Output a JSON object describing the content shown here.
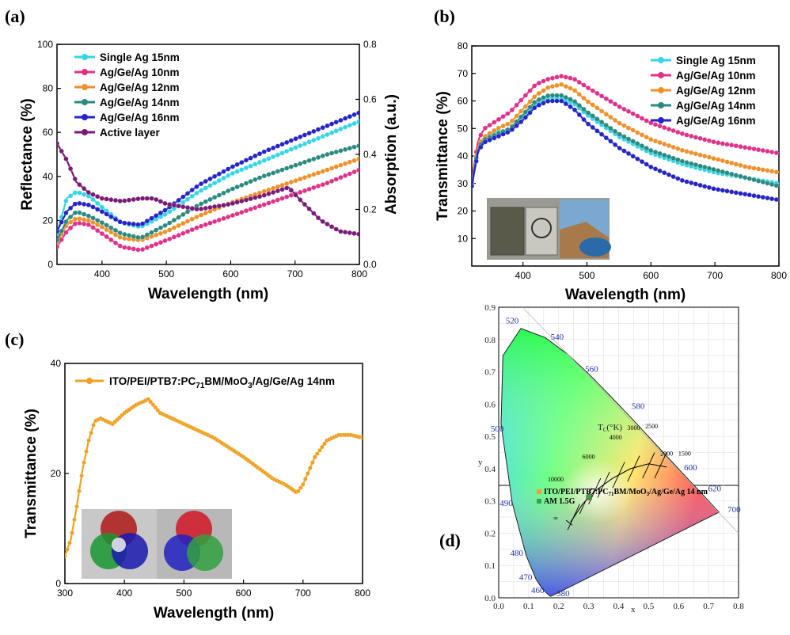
{
  "colors": {
    "single_ag": "#33d6e6",
    "agge_10": "#e0308a",
    "agge_12": "#f0902a",
    "agge_14": "#2a8a80",
    "agge_16": "#2424c8",
    "active": "#7a1a78",
    "tandem_c": "#f0a020"
  },
  "chart_data": [
    {
      "panel": "(a)",
      "type": "line",
      "xlabel": "Wavelength (nm)",
      "ylabel": "Reflectance (%)",
      "y2label": "Absorption (a.u.)",
      "xlim": [
        330,
        800
      ],
      "ylim": [
        0,
        100
      ],
      "y2lim": [
        0,
        0.8
      ],
      "xticks": [
        "400",
        "500",
        "600",
        "700",
        "800"
      ],
      "yticks": [
        "0",
        "20",
        "40",
        "60",
        "80",
        "100"
      ],
      "y2ticks": [
        "0.0",
        "0.2",
        "0.4",
        "0.6",
        "0.8"
      ],
      "legend_position": "top-left",
      "series": [
        {
          "name": "Single Ag 15nm",
          "color_key": "single_ag",
          "axis": "left",
          "x": [
            330,
            345,
            360,
            380,
            400,
            430,
            460,
            500,
            550,
            600,
            650,
            700,
            750,
            800
          ],
          "y": [
            14,
            30,
            33,
            31,
            26,
            19,
            17,
            23,
            33,
            41,
            47,
            53,
            59,
            65
          ]
        },
        {
          "name": "Ag/Ge/Ag 10nm",
          "color_key": "agge_10",
          "axis": "left",
          "x": [
            330,
            345,
            360,
            380,
            400,
            430,
            460,
            500,
            550,
            600,
            650,
            700,
            750,
            800
          ],
          "y": [
            8,
            15,
            19,
            18,
            14,
            8,
            6.5,
            11,
            17,
            22,
            27,
            32,
            37,
            43
          ]
        },
        {
          "name": "Ag/Ge/Ag 12nm",
          "color_key": "agge_12",
          "axis": "left",
          "x": [
            330,
            345,
            360,
            380,
            400,
            430,
            460,
            500,
            550,
            600,
            650,
            700,
            750,
            800
          ],
          "y": [
            10,
            18,
            21,
            20,
            17,
            12,
            11,
            15,
            22,
            28,
            33,
            38,
            43,
            48
          ]
        },
        {
          "name": "Ag/Ge/Ag 14nm",
          "color_key": "agge_14",
          "axis": "left",
          "x": [
            330,
            345,
            360,
            380,
            400,
            430,
            460,
            500,
            550,
            600,
            650,
            700,
            750,
            800
          ],
          "y": [
            11,
            20,
            24,
            22,
            19,
            14,
            12,
            18,
            27,
            34,
            40,
            45,
            50,
            54
          ]
        },
        {
          "name": "Ag/Ge/Ag 16nm",
          "color_key": "agge_16",
          "axis": "left",
          "x": [
            330,
            345,
            360,
            380,
            400,
            430,
            460,
            500,
            550,
            600,
            650,
            700,
            750,
            800
          ],
          "y": [
            15,
            24,
            28,
            27,
            24,
            19,
            18,
            25,
            36,
            44,
            51,
            57,
            63,
            69
          ]
        },
        {
          "name": "Active layer",
          "color_key": "active",
          "axis": "right",
          "x": [
            330,
            345,
            360,
            380,
            400,
            430,
            460,
            480,
            500,
            550,
            600,
            650,
            690,
            710,
            740,
            770,
            800
          ],
          "y": [
            0.44,
            0.38,
            0.3,
            0.26,
            0.24,
            0.23,
            0.24,
            0.24,
            0.22,
            0.2,
            0.22,
            0.25,
            0.28,
            0.23,
            0.16,
            0.12,
            0.11
          ]
        }
      ]
    },
    {
      "panel": "(b)",
      "type": "line",
      "xlabel": "Wavelength (nm)",
      "ylabel": "Transmittance (%)",
      "xlim": [
        320,
        800
      ],
      "ylim": [
        0,
        80
      ],
      "xticks": [
        "400",
        "500",
        "600",
        "700",
        "800"
      ],
      "yticks": [
        "10",
        "20",
        "30",
        "40",
        "50",
        "60",
        "70",
        "80"
      ],
      "legend_position": "top-right",
      "series": [
        {
          "name": "Single Ag 15nm",
          "color_key": "single_ag",
          "x": [
            320,
            330,
            340,
            360,
            380,
            400,
            420,
            440,
            460,
            480,
            500,
            550,
            600,
            650,
            700,
            750,
            800
          ],
          "y": [
            30,
            44,
            47,
            49,
            49,
            54,
            59,
            61,
            61,
            59,
            55,
            47,
            41,
            37,
            34,
            32,
            30
          ]
        },
        {
          "name": "Ag/Ge/Ag 10nm",
          "color_key": "agge_10",
          "x": [
            320,
            330,
            340,
            360,
            380,
            400,
            420,
            440,
            460,
            480,
            500,
            550,
            600,
            650,
            700,
            750,
            800
          ],
          "y": [
            31,
            46,
            50,
            53,
            56,
            61,
            66,
            68,
            69,
            68,
            65,
            58,
            52,
            48,
            45,
            43,
            41
          ]
        },
        {
          "name": "Ag/Ge/Ag 12nm",
          "color_key": "agge_12",
          "x": [
            320,
            330,
            340,
            360,
            380,
            400,
            420,
            440,
            460,
            480,
            500,
            550,
            600,
            650,
            700,
            750,
            800
          ],
          "y": [
            30,
            44,
            47,
            50,
            52,
            57,
            62,
            65,
            66,
            64,
            60,
            52,
            46,
            42,
            39,
            36,
            34
          ]
        },
        {
          "name": "Ag/Ge/Ag 14nm",
          "color_key": "agge_14",
          "x": [
            320,
            330,
            340,
            360,
            380,
            400,
            420,
            440,
            460,
            480,
            500,
            550,
            600,
            650,
            700,
            750,
            800
          ],
          "y": [
            30,
            43,
            46,
            48,
            50,
            55,
            60,
            62,
            62,
            60,
            56,
            48,
            42,
            38,
            35,
            32,
            29
          ]
        },
        {
          "name": "Ag/Ge/Ag 16nm",
          "color_key": "agge_16",
          "x": [
            320,
            330,
            340,
            360,
            380,
            400,
            420,
            440,
            460,
            480,
            500,
            550,
            600,
            650,
            700,
            750,
            800
          ],
          "y": [
            29,
            42,
            45,
            47,
            49,
            53,
            58,
            60,
            60,
            57,
            52,
            43,
            36,
            31,
            28,
            26,
            24
          ]
        }
      ]
    },
    {
      "panel": "(c)",
      "type": "line",
      "xlabel": "Wavelength (nm)",
      "ylabel": "Transmittance (%)",
      "xlim": [
        300,
        800
      ],
      "ylim": [
        0,
        40
      ],
      "xticks": [
        "300",
        "400",
        "500",
        "600",
        "700",
        "800"
      ],
      "yticks": [
        "0",
        "20",
        "40"
      ],
      "legend_position": "top-left",
      "series": [
        {
          "name_prefix": "ITO/PEI/PTB7:PC",
          "name_sub": "71",
          "name_mid": "BM/MoO",
          "name_sub2": "3",
          "name_suffix": "/Ag/Ge/Ag 14nm",
          "color_key": "tandem_c",
          "x": [
            300,
            310,
            320,
            330,
            340,
            350,
            360,
            370,
            380,
            390,
            400,
            420,
            440,
            460,
            500,
            550,
            600,
            650,
            670,
            690,
            700,
            720,
            740,
            760,
            780,
            800
          ],
          "y": [
            5,
            8,
            14,
            21,
            26,
            29.5,
            30,
            29.5,
            29,
            30,
            31,
            32.5,
            33.5,
            31,
            29,
            26.5,
            23,
            19,
            18,
            16.5,
            18,
            23,
            26,
            27,
            27,
            26.5
          ]
        }
      ]
    },
    {
      "panel": "(d)",
      "type": "scatter",
      "xlabel": "x",
      "ylabel": "y",
      "xlim": [
        0.0,
        0.8
      ],
      "ylim": [
        0.0,
        0.9
      ],
      "xticks": [
        "0.0",
        "0.1",
        "0.2",
        "0.3",
        "0.4",
        "0.5",
        "0.6",
        "0.7",
        "0.8"
      ],
      "yticks": [
        "0.0",
        "0.1",
        "0.2",
        "0.3",
        "0.4",
        "0.5",
        "0.6",
        "0.7",
        "0.8",
        "0.9"
      ],
      "legend_position": "top-right",
      "legend": [
        {
          "label_prefix": "ITO/PEI/PTB7:PC",
          "label_sub": "71",
          "label_mid": "BM/MoO",
          "label_sub2": "3",
          "label_suffix": "/Ag/Ge/Ag  14 nm",
          "color": "#f0a030"
        },
        {
          "label": "AM 1.5G",
          "color": "#3aa04a"
        }
      ],
      "points": [
        {
          "name": "ITO/PEI/PTB7:PC71BM/MoO3/Ag/Ge/Ag 14 nm",
          "x": 0.3,
          "y": 0.31,
          "color": "#f0a030"
        },
        {
          "name": "AM 1.5G",
          "x": 0.3,
          "y": 0.31,
          "color": "#3aa04a"
        }
      ],
      "wavelength_labels": [
        "380",
        "460",
        "470",
        "480",
        "490",
        "500",
        "520",
        "540",
        "560",
        "580",
        "600",
        "620",
        "700"
      ],
      "planck_label": "T",
      "planck_label_sub": "C",
      "planck_label_unit": "(°K)",
      "planck_temps": [
        "10000",
        "6000",
        "4000",
        "3000",
        "2500",
        "2000",
        "1500",
        "∞"
      ]
    }
  ]
}
